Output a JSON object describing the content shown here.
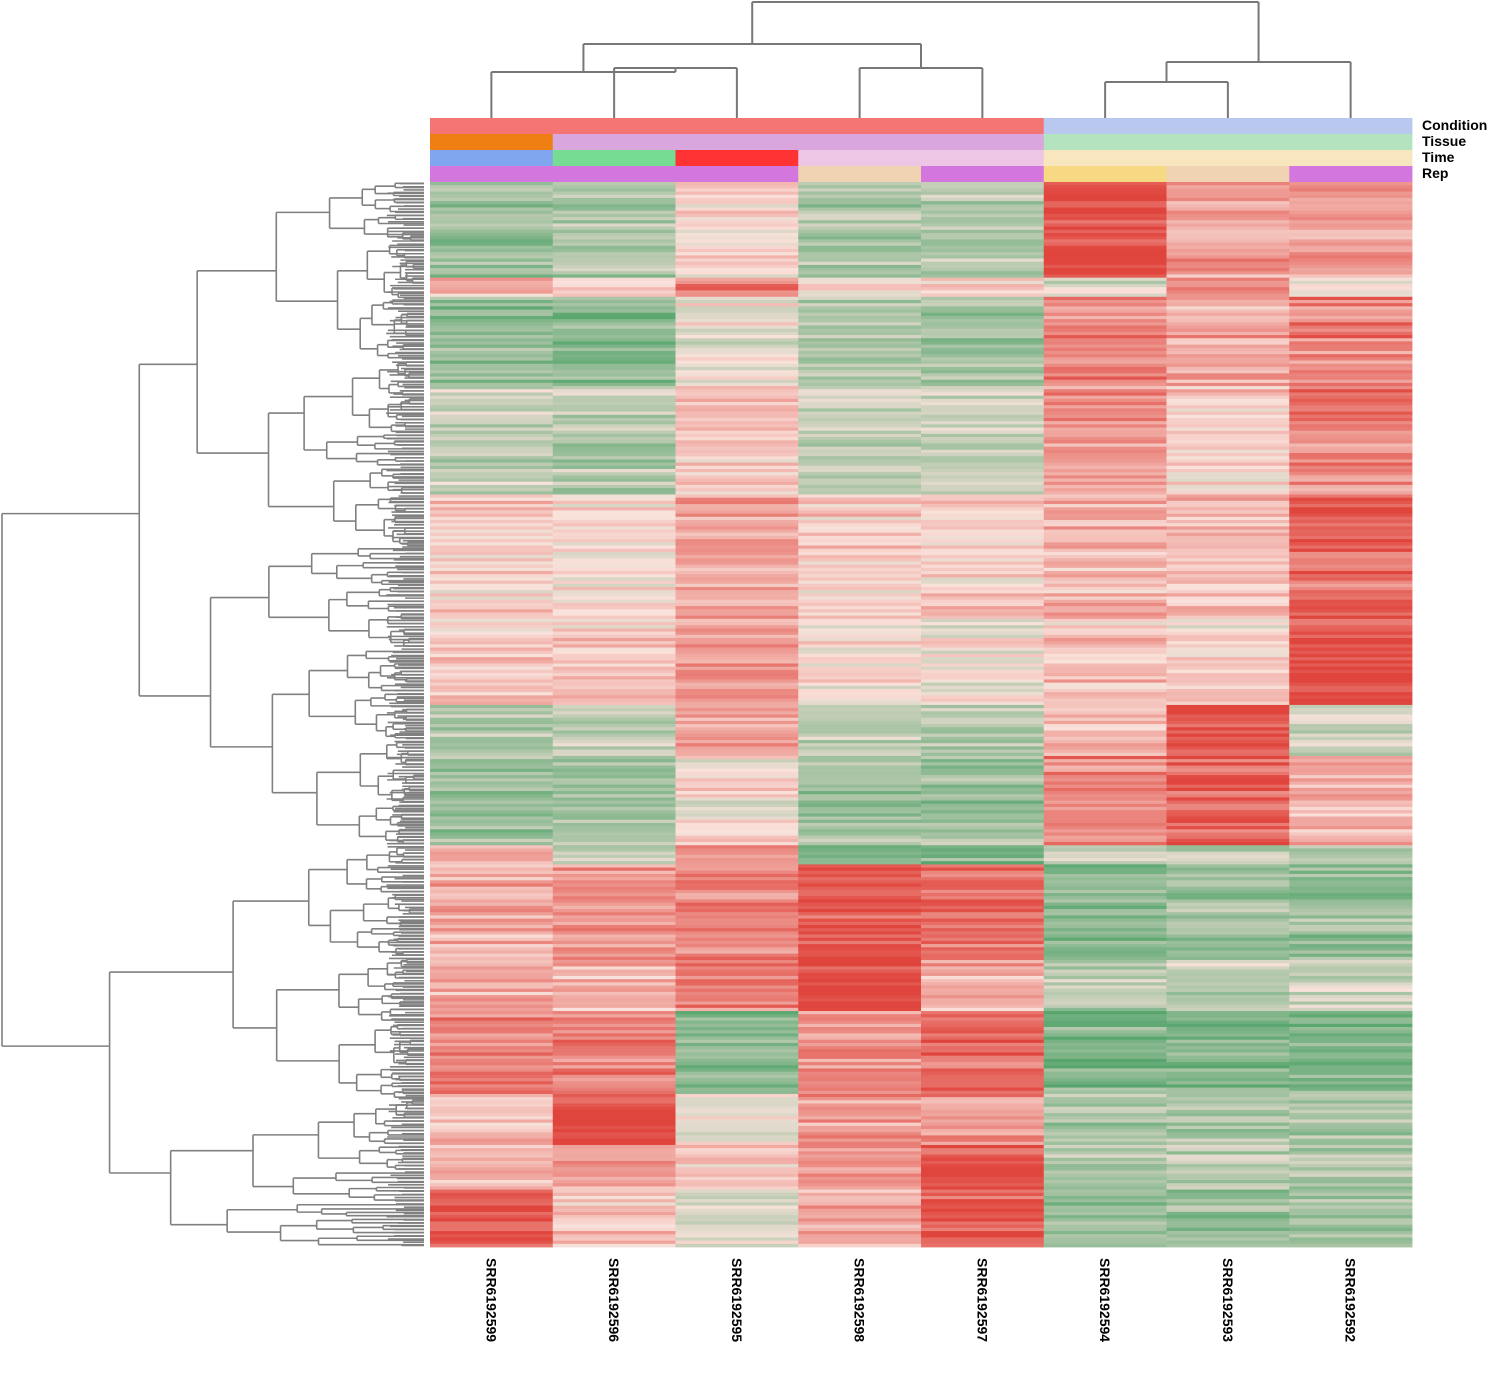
{
  "chart_data": {
    "type": "heatmap",
    "title": "",
    "columns": [
      "SRR6192599",
      "SRR6192596",
      "SRR6192595",
      "SRR6192598",
      "SRR6192597",
      "SRR6192594",
      "SRR6192593",
      "SRR6192592"
    ],
    "annotation_tracks": [
      {
        "name": "Condition",
        "colors": [
          "#f57575",
          "#f57575",
          "#f57575",
          "#f57575",
          "#f57575",
          "#b8c8ee",
          "#b8c8ee",
          "#b8c8ee"
        ]
      },
      {
        "name": "Tissue",
        "colors": [
          "#ef7f12",
          "#d9a6dd",
          "#d9a6dd",
          "#d9a6dd",
          "#d9a6dd",
          "#b3e4bf",
          "#b3e4bf",
          "#b3e4bf"
        ]
      },
      {
        "name": "Time",
        "colors": [
          "#7fa6ee",
          "#77dc93",
          "#ff3333",
          "#edc6e6",
          "#edc6e6",
          "#f8e6bf",
          "#f8e6bf",
          "#f8e6bf"
        ]
      },
      {
        "name": "Rep",
        "colors": [
          "#d376dd",
          "#d376dd",
          "#d376dd",
          "#f0d3b2",
          "#d376dd",
          "#f6d982",
          "#f0d3b2",
          "#d376dd"
        ]
      }
    ],
    "color_scale": {
      "low": "#58a66e",
      "mid": "#f9e2db",
      "high": "#e0453d"
    },
    "row_clusters": [
      {
        "rows": 30,
        "levels": [
          -0.6,
          -0.5,
          0.0,
          -0.5,
          -0.45,
          0.95,
          0.4,
          0.35
        ]
      },
      {
        "rows": 6,
        "levels": [
          0.3,
          0.15,
          0.55,
          0.0,
          0.1,
          -0.2,
          0.55,
          -0.1
        ]
      },
      {
        "rows": 28,
        "levels": [
          -0.6,
          -0.7,
          -0.1,
          -0.5,
          -0.55,
          0.55,
          0.35,
          0.6
        ]
      },
      {
        "rows": 34,
        "levels": [
          -0.3,
          -0.4,
          0.2,
          -0.3,
          -0.3,
          0.5,
          0.1,
          0.6
        ]
      },
      {
        "rows": 38,
        "levels": [
          0.1,
          0.05,
          0.35,
          0.1,
          0.1,
          0.3,
          0.2,
          0.75
        ]
      },
      {
        "rows": 28,
        "levels": [
          0.2,
          0.2,
          0.5,
          0.0,
          0.0,
          0.2,
          0.1,
          0.95
        ]
      },
      {
        "rows": 16,
        "levels": [
          -0.4,
          -0.3,
          0.35,
          -0.3,
          -0.4,
          0.3,
          0.95,
          -0.2
        ]
      },
      {
        "rows": 28,
        "levels": [
          -0.55,
          -0.5,
          0.0,
          -0.55,
          -0.55,
          0.55,
          0.8,
          0.3
        ]
      },
      {
        "rows": 6,
        "levels": [
          0.4,
          -0.3,
          0.5,
          -0.8,
          -0.8,
          -0.4,
          -0.4,
          -0.4
        ]
      },
      {
        "rows": 30,
        "levels": [
          0.4,
          0.55,
          0.6,
          0.85,
          0.7,
          -0.65,
          -0.55,
          -0.6
        ]
      },
      {
        "rows": 16,
        "levels": [
          0.35,
          0.3,
          0.6,
          0.95,
          0.35,
          -0.4,
          -0.35,
          -0.35
        ]
      },
      {
        "rows": 26,
        "levels": [
          0.55,
          0.6,
          -0.75,
          0.5,
          0.7,
          -0.8,
          -0.8,
          -0.75
        ]
      },
      {
        "rows": 16,
        "levels": [
          0.2,
          0.95,
          -0.1,
          0.45,
          0.5,
          -0.5,
          -0.5,
          -0.5
        ]
      },
      {
        "rows": 14,
        "levels": [
          0.2,
          0.4,
          0.1,
          0.45,
          0.9,
          -0.5,
          -0.4,
          -0.45
        ]
      },
      {
        "rows": 18,
        "levels": [
          0.9,
          0.2,
          -0.2,
          0.3,
          0.9,
          -0.6,
          -0.6,
          -0.6
        ]
      }
    ],
    "annotation_labels": [
      "Condition",
      "Tissue",
      "Time",
      "Rep"
    ],
    "legend": "none",
    "column_dendrogram": true,
    "row_dendrogram": true
  }
}
